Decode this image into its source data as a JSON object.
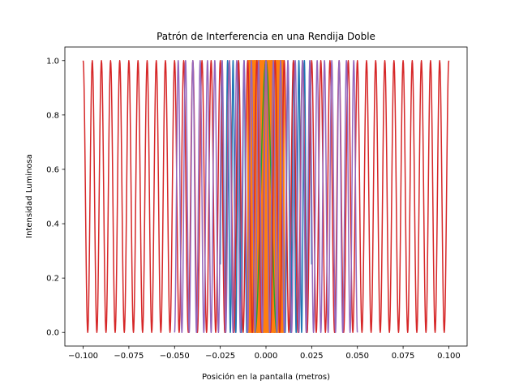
{
  "chart_data": {
    "type": "line",
    "title": "Patrón de Interferencia en una Rendija Doble",
    "xlabel": "Posición en la pantalla (metros)",
    "ylabel": "Intensidad Luminosa",
    "xlim": [
      -0.11,
      0.11
    ],
    "ylim": [
      -0.05,
      1.05
    ],
    "xticks": [
      -0.1,
      -0.075,
      -0.05,
      -0.025,
      0.0,
      0.025,
      0.05,
      0.075,
      0.1
    ],
    "xtick_labels": [
      "−0.100",
      "−0.075",
      "−0.050",
      "−0.025",
      "0.000",
      "0.025",
      "0.050",
      "0.075",
      "0.100"
    ],
    "yticks": [
      0.0,
      0.2,
      0.4,
      0.6,
      0.8,
      1.0
    ],
    "ytick_labels": [
      "0.0",
      "0.2",
      "0.4",
      "0.6",
      "0.8",
      "1.0"
    ],
    "grid": false,
    "legend": "none",
    "series": [
      {
        "color": "#1f77b4",
        "x_range": [
          -0.025,
          0.025
        ],
        "fringe_period": 0.003,
        "min": 0.0,
        "max": 1.0
      },
      {
        "color": "#ff7f0e",
        "x_range": [
          -0.01,
          0.01
        ],
        "fringe_period": 0.0005,
        "min": 0.0,
        "max": 1.0
      },
      {
        "color": "#2ca02c",
        "x_range": [
          -0.006,
          0.006
        ],
        "fringe_period": 0.012,
        "min": 0.0,
        "max": 1.0
      },
      {
        "color": "#d62728",
        "x_range": [
          -0.1,
          0.1
        ],
        "fringe_period": 0.005,
        "min": 0.0,
        "max": 1.0
      },
      {
        "color": "#9467bd",
        "x_range": [
          -0.05,
          0.05
        ],
        "fringe_period": 0.004,
        "min": 0.0,
        "max": 1.0
      }
    ]
  }
}
